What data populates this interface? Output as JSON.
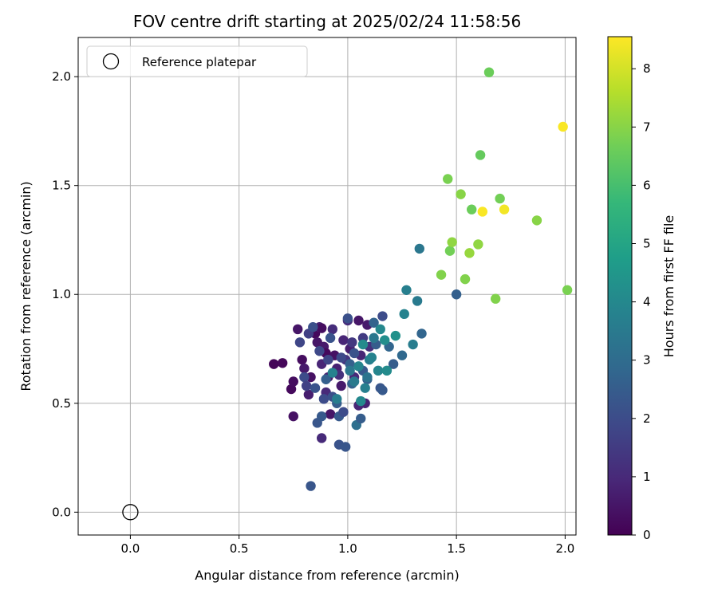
{
  "chart_data": {
    "type": "scatter",
    "title": "FOV centre drift starting at 2025/02/24 11:58:56",
    "xlabel": "Angular distance from reference (arcmin)",
    "ylabel": "Rotation from reference (arcmin)",
    "colorbar_label": "Hours from first FF file",
    "xlim": [
      -0.24,
      2.05
    ],
    "ylim": [
      -0.105,
      2.18
    ],
    "xticks": [
      0.0,
      0.5,
      1.0,
      1.5,
      2.0
    ],
    "xtick_labels": [
      "0.0",
      "0.5",
      "1.0",
      "1.5",
      "2.0"
    ],
    "yticks": [
      0.0,
      0.5,
      1.0,
      1.5,
      2.0
    ],
    "ytick_labels": [
      "0.0",
      "0.5",
      "1.0",
      "1.5",
      "2.0"
    ],
    "colorbar_range": [
      0,
      8.55
    ],
    "colorbar_ticks": [
      0,
      1,
      2,
      3,
      4,
      5,
      6,
      7,
      8
    ],
    "colorbar_tick_labels": [
      "0",
      "1",
      "2",
      "3",
      "4",
      "5",
      "6",
      "7",
      "8"
    ],
    "colormap": "viridis",
    "grid": true,
    "legend": {
      "position": "top-left",
      "entries": [
        "Reference platepar"
      ]
    },
    "reference_point": {
      "x": 0.0,
      "y": 0.0
    },
    "points": [
      {
        "x": 0.66,
        "y": 0.68,
        "h": 0.1
      },
      {
        "x": 0.7,
        "y": 0.685,
        "h": 0.15
      },
      {
        "x": 0.74,
        "y": 0.565,
        "h": 0.2
      },
      {
        "x": 0.75,
        "y": 0.6,
        "h": 0.3
      },
      {
        "x": 0.75,
        "y": 0.44,
        "h": 0.4
      },
      {
        "x": 0.77,
        "y": 0.84,
        "h": 0.5
      },
      {
        "x": 0.79,
        "y": 0.7,
        "h": 0.3
      },
      {
        "x": 0.8,
        "y": 0.66,
        "h": 0.6
      },
      {
        "x": 0.82,
        "y": 0.54,
        "h": 0.7
      },
      {
        "x": 0.83,
        "y": 0.62,
        "h": 0.4
      },
      {
        "x": 0.85,
        "y": 0.82,
        "h": 0.2
      },
      {
        "x": 0.86,
        "y": 0.78,
        "h": 0.5
      },
      {
        "x": 0.87,
        "y": 0.85,
        "h": 0.8
      },
      {
        "x": 0.88,
        "y": 0.845,
        "h": 0.3
      },
      {
        "x": 0.89,
        "y": 0.76,
        "h": 0.6
      },
      {
        "x": 0.9,
        "y": 0.73,
        "h": 0.2
      },
      {
        "x": 0.88,
        "y": 0.68,
        "h": 0.9
      },
      {
        "x": 0.91,
        "y": 0.62,
        "h": 0.7
      },
      {
        "x": 0.9,
        "y": 0.55,
        "h": 1.0
      },
      {
        "x": 0.92,
        "y": 0.45,
        "h": 0.5
      },
      {
        "x": 0.88,
        "y": 0.34,
        "h": 1.0
      },
      {
        "x": 0.93,
        "y": 0.84,
        "h": 1.1
      },
      {
        "x": 0.94,
        "y": 0.72,
        "h": 0.4
      },
      {
        "x": 0.95,
        "y": 0.66,
        "h": 0.8
      },
      {
        "x": 0.96,
        "y": 0.63,
        "h": 1.2
      },
      {
        "x": 0.97,
        "y": 0.58,
        "h": 0.6
      },
      {
        "x": 0.98,
        "y": 0.79,
        "h": 0.9
      },
      {
        "x": 0.99,
        "y": 0.7,
        "h": 1.3
      },
      {
        "x": 1.0,
        "y": 0.88,
        "h": 1.1
      },
      {
        "x": 1.01,
        "y": 0.75,
        "h": 0.7
      },
      {
        "x": 1.02,
        "y": 0.78,
        "h": 1.4
      },
      {
        "x": 1.03,
        "y": 0.62,
        "h": 1.0
      },
      {
        "x": 1.05,
        "y": 0.88,
        "h": 0.5
      },
      {
        "x": 1.06,
        "y": 0.72,
        "h": 0.9
      },
      {
        "x": 1.07,
        "y": 0.8,
        "h": 1.5
      },
      {
        "x": 1.08,
        "y": 0.5,
        "h": 0.8
      },
      {
        "x": 1.09,
        "y": 0.86,
        "h": 0.6
      },
      {
        "x": 1.1,
        "y": 0.76,
        "h": 1.2
      },
      {
        "x": 1.05,
        "y": 0.49,
        "h": 0.9
      },
      {
        "x": 0.78,
        "y": 0.78,
        "h": 1.8
      },
      {
        "x": 0.8,
        "y": 0.62,
        "h": 2.0
      },
      {
        "x": 0.81,
        "y": 0.58,
        "h": 1.7
      },
      {
        "x": 0.82,
        "y": 0.82,
        "h": 1.6
      },
      {
        "x": 0.84,
        "y": 0.85,
        "h": 2.1
      },
      {
        "x": 0.85,
        "y": 0.57,
        "h": 2.2
      },
      {
        "x": 0.86,
        "y": 0.41,
        "h": 2.3
      },
      {
        "x": 0.87,
        "y": 0.74,
        "h": 1.9
      },
      {
        "x": 0.88,
        "y": 0.44,
        "h": 2.4
      },
      {
        "x": 0.89,
        "y": 0.52,
        "h": 2.0
      },
      {
        "x": 0.9,
        "y": 0.61,
        "h": 2.6
      },
      {
        "x": 0.83,
        "y": 0.12,
        "h": 2.3
      },
      {
        "x": 0.91,
        "y": 0.7,
        "h": 1.8
      },
      {
        "x": 0.92,
        "y": 0.8,
        "h": 2.2
      },
      {
        "x": 0.93,
        "y": 0.53,
        "h": 2.1
      },
      {
        "x": 0.95,
        "y": 0.5,
        "h": 2.5
      },
      {
        "x": 0.96,
        "y": 0.44,
        "h": 2.4
      },
      {
        "x": 0.96,
        "y": 0.31,
        "h": 2.2
      },
      {
        "x": 0.97,
        "y": 0.71,
        "h": 1.9
      },
      {
        "x": 0.98,
        "y": 0.46,
        "h": 2.0
      },
      {
        "x": 0.99,
        "y": 0.3,
        "h": 2.3
      },
      {
        "x": 1.0,
        "y": 0.89,
        "h": 2.1
      },
      {
        "x": 1.01,
        "y": 0.68,
        "h": 2.6
      },
      {
        "x": 1.02,
        "y": 0.59,
        "h": 2.7
      },
      {
        "x": 1.03,
        "y": 0.73,
        "h": 2.2
      },
      {
        "x": 1.04,
        "y": 0.4,
        "h": 3.1
      },
      {
        "x": 1.06,
        "y": 0.43,
        "h": 2.5
      },
      {
        "x": 1.07,
        "y": 0.65,
        "h": 2.4
      },
      {
        "x": 1.09,
        "y": 0.61,
        "h": 2.6
      },
      {
        "x": 1.12,
        "y": 0.87,
        "h": 2.7
      },
      {
        "x": 1.13,
        "y": 0.77,
        "h": 2.5
      },
      {
        "x": 1.15,
        "y": 0.57,
        "h": 2.3
      },
      {
        "x": 1.16,
        "y": 0.9,
        "h": 2.0
      },
      {
        "x": 1.16,
        "y": 0.56,
        "h": 2.4
      },
      {
        "x": 1.19,
        "y": 0.76,
        "h": 2.8
      },
      {
        "x": 1.21,
        "y": 0.68,
        "h": 2.5
      },
      {
        "x": 1.25,
        "y": 0.72,
        "h": 2.9
      },
      {
        "x": 1.34,
        "y": 0.82,
        "h": 2.8
      },
      {
        "x": 1.5,
        "y": 1.0,
        "h": 2.6
      },
      {
        "x": 0.93,
        "y": 0.64,
        "h": 3.8
      },
      {
        "x": 0.95,
        "y": 0.52,
        "h": 3.6
      },
      {
        "x": 1.01,
        "y": 0.65,
        "h": 3.4
      },
      {
        "x": 1.03,
        "y": 0.6,
        "h": 3.5
      },
      {
        "x": 1.05,
        "y": 0.67,
        "h": 3.9
      },
      {
        "x": 1.06,
        "y": 0.51,
        "h": 4.0
      },
      {
        "x": 1.07,
        "y": 0.77,
        "h": 4.1
      },
      {
        "x": 1.08,
        "y": 0.57,
        "h": 3.7
      },
      {
        "x": 1.09,
        "y": 0.62,
        "h": 3.3
      },
      {
        "x": 1.1,
        "y": 0.7,
        "h": 3.6
      },
      {
        "x": 1.11,
        "y": 0.71,
        "h": 3.8
      },
      {
        "x": 1.12,
        "y": 0.8,
        "h": 3.4
      },
      {
        "x": 1.14,
        "y": 0.65,
        "h": 3.9
      },
      {
        "x": 1.15,
        "y": 0.84,
        "h": 4.0
      },
      {
        "x": 1.17,
        "y": 0.79,
        "h": 4.2
      },
      {
        "x": 1.18,
        "y": 0.65,
        "h": 4.1
      },
      {
        "x": 1.22,
        "y": 0.81,
        "h": 4.3
      },
      {
        "x": 1.26,
        "y": 0.91,
        "h": 3.8
      },
      {
        "x": 1.27,
        "y": 1.02,
        "h": 3.7
      },
      {
        "x": 1.3,
        "y": 0.77,
        "h": 3.6
      },
      {
        "x": 1.32,
        "y": 0.97,
        "h": 3.5
      },
      {
        "x": 1.33,
        "y": 1.21,
        "h": 3.4
      },
      {
        "x": 1.43,
        "y": 1.09,
        "h": 6.9
      },
      {
        "x": 1.46,
        "y": 1.53,
        "h": 6.8
      },
      {
        "x": 1.47,
        "y": 1.2,
        "h": 6.7
      },
      {
        "x": 1.48,
        "y": 1.24,
        "h": 7.1
      },
      {
        "x": 1.52,
        "y": 1.46,
        "h": 7.0
      },
      {
        "x": 1.54,
        "y": 1.07,
        "h": 6.9
      },
      {
        "x": 1.56,
        "y": 1.19,
        "h": 7.2
      },
      {
        "x": 1.57,
        "y": 1.39,
        "h": 6.6
      },
      {
        "x": 1.6,
        "y": 1.23,
        "h": 7.1
      },
      {
        "x": 1.61,
        "y": 1.64,
        "h": 6.5
      },
      {
        "x": 1.65,
        "y": 2.02,
        "h": 6.6
      },
      {
        "x": 1.68,
        "y": 0.98,
        "h": 6.9
      },
      {
        "x": 1.7,
        "y": 1.44,
        "h": 6.7
      },
      {
        "x": 1.87,
        "y": 1.34,
        "h": 7.0
      },
      {
        "x": 2.01,
        "y": 1.02,
        "h": 6.8
      },
      {
        "x": 1.62,
        "y": 1.38,
        "h": 8.5
      },
      {
        "x": 1.72,
        "y": 1.39,
        "h": 8.4
      },
      {
        "x": 1.99,
        "y": 1.77,
        "h": 8.5
      }
    ]
  }
}
